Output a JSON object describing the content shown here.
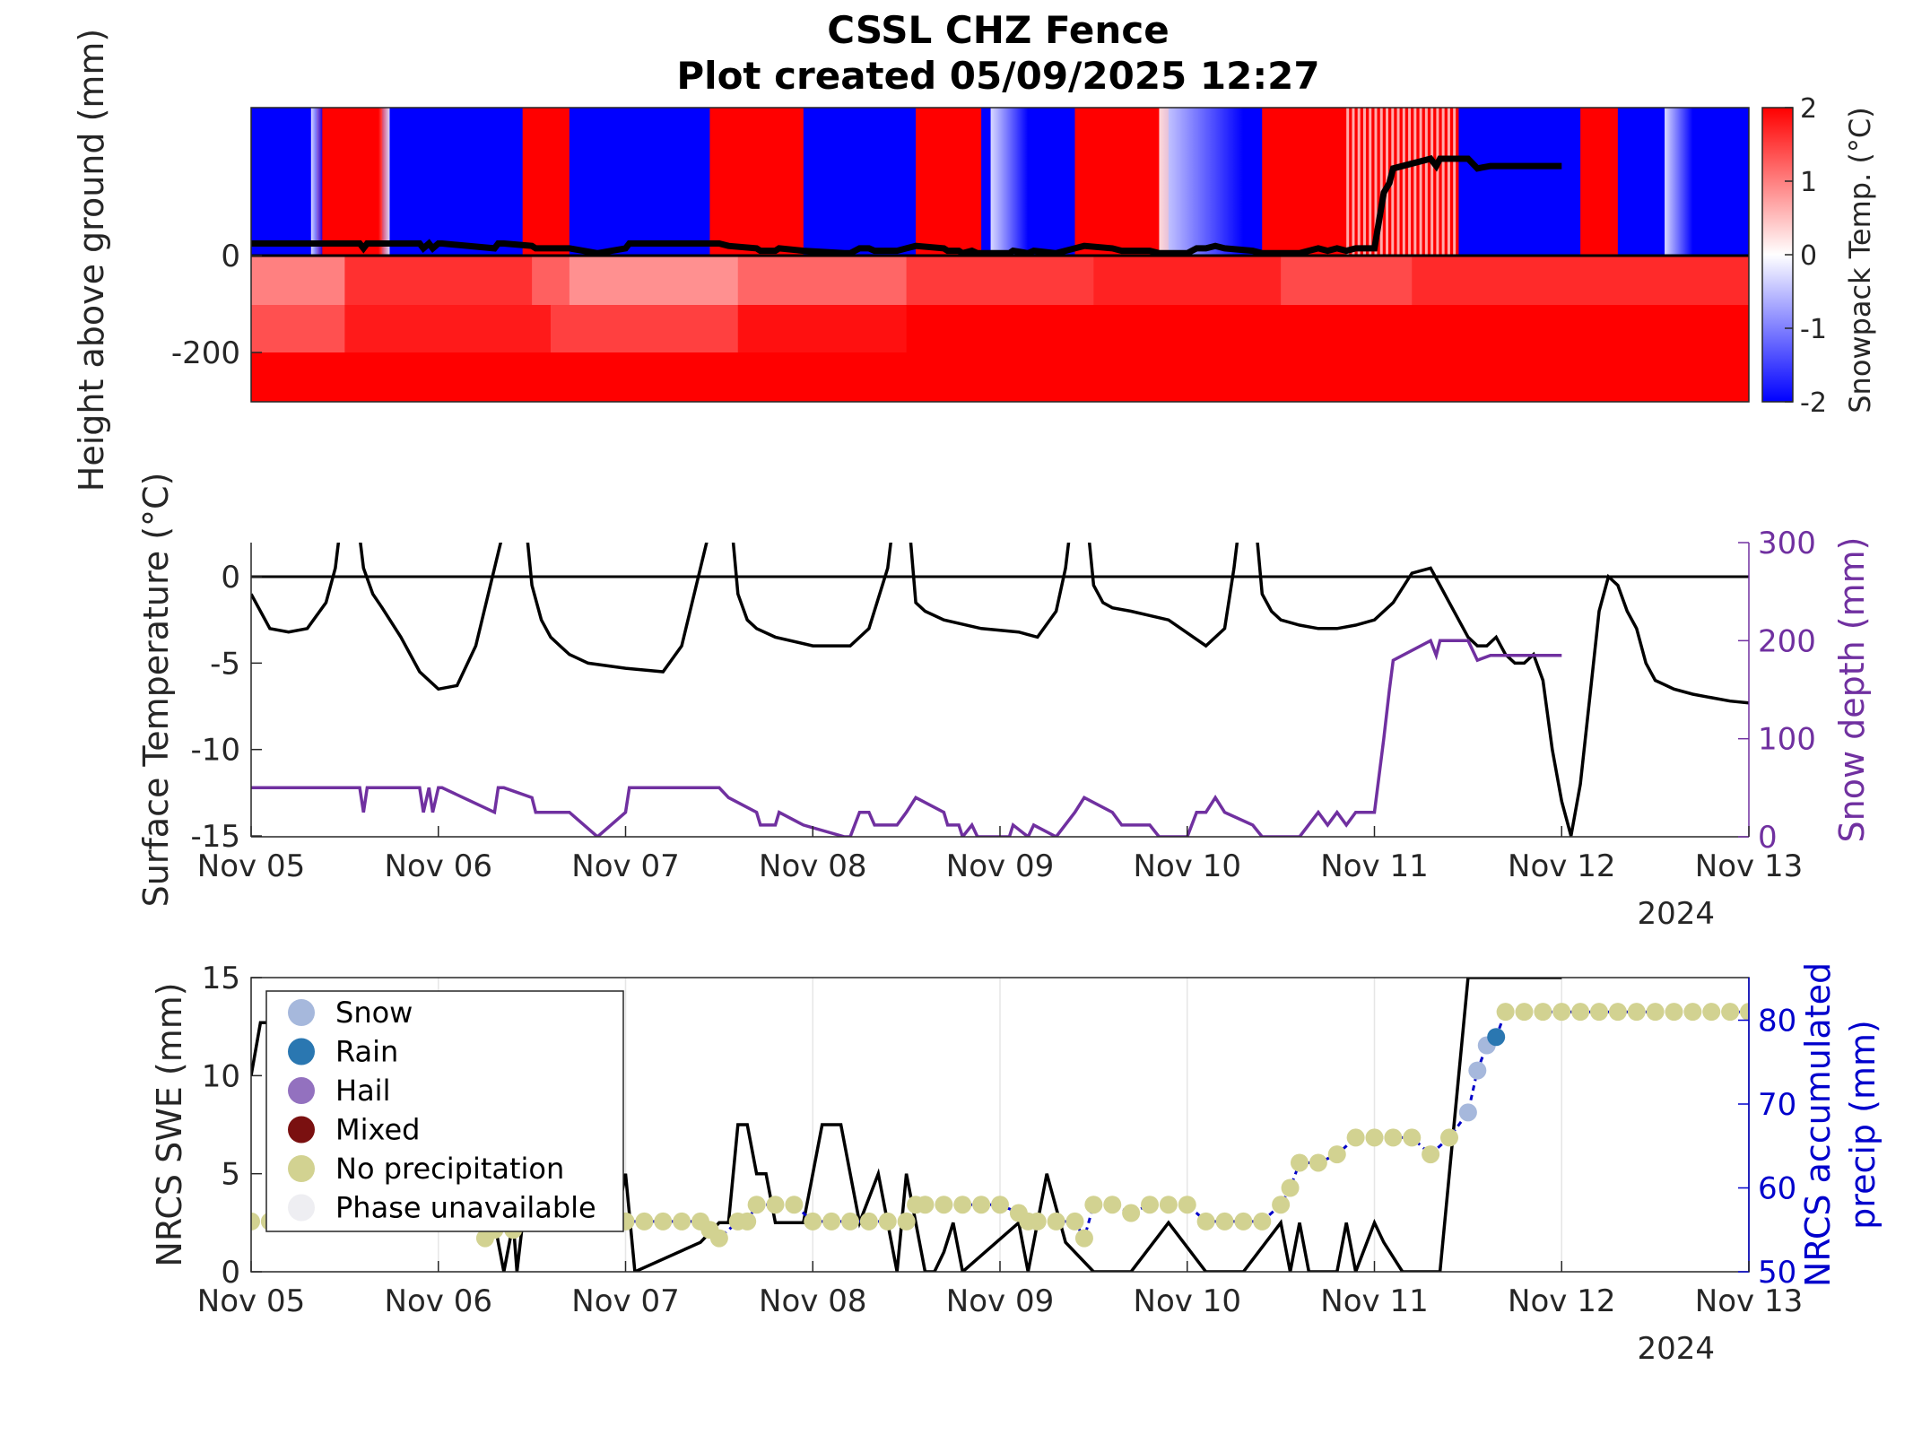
{
  "title": {
    "line1": "CSSL CHZ Fence",
    "line2": "Plot created 05/09/2025 12:27"
  },
  "colors": {
    "cold": "#0000ff",
    "warm": "#ff0000",
    "depth": "#7030a0",
    "precip": "#0000c8",
    "axis_blue": "#0000cc",
    "axis_purple": "#7030a0"
  },
  "x_ticks": [
    "Nov 05",
    "Nov 06",
    "Nov 07",
    "Nov 08",
    "Nov 09",
    "Nov 10",
    "Nov 11",
    "Nov 12",
    "Nov 13"
  ],
  "year": "2024",
  "chart_data": [
    {
      "type": "heatmap",
      "ylabel": "Height above ground (mm)",
      "y_ticks": [
        "0",
        "-200"
      ],
      "colorbar": {
        "label": "Snowpack Temp. (°C)",
        "ticks": [
          "2",
          "1",
          "0",
          "-1",
          "-2"
        ],
        "range": [
          -2,
          2
        ]
      },
      "x_range_days": [
        0,
        8
      ],
      "snow_depth_mm": {
        "x_days": [
          0,
          0.58,
          0.6,
          0.62,
          0.9,
          0.92,
          0.95,
          0.97,
          1.0,
          1.02,
          1.3,
          1.32,
          1.35,
          1.5,
          1.52,
          1.7,
          1.85,
          2.0,
          2.02,
          2.5,
          2.55,
          2.7,
          2.72,
          2.8,
          2.82,
          2.95,
          3.17,
          3.2,
          3.25,
          3.3,
          3.33,
          3.45,
          3.5,
          3.55,
          3.7,
          3.72,
          3.78,
          3.8,
          3.85,
          3.88,
          4.05,
          4.07,
          4.15,
          4.18,
          4.3,
          4.4,
          4.45,
          4.6,
          4.65,
          4.8,
          4.85,
          5.0,
          5.05,
          5.1,
          5.15,
          5.2,
          5.35,
          5.4,
          5.6,
          5.7,
          5.75,
          5.8,
          5.85,
          5.9,
          6.0,
          6.05,
          6.08,
          6.1,
          6.3,
          6.33,
          6.35,
          6.5,
          6.55,
          6.62,
          6.68,
          6.72,
          6.8,
          6.85,
          7.0
        ],
        "values": [
          25,
          25,
          15,
          25,
          25,
          15,
          25,
          15,
          25,
          25,
          15,
          25,
          25,
          20,
          15,
          15,
          5,
          15,
          25,
          25,
          20,
          15,
          10,
          10,
          15,
          10,
          5,
          5,
          15,
          15,
          10,
          10,
          15,
          20,
          15,
          10,
          10,
          5,
          10,
          5,
          5,
          10,
          5,
          10,
          5,
          15,
          20,
          15,
          10,
          10,
          5,
          5,
          15,
          15,
          20,
          15,
          10,
          5,
          5,
          15,
          10,
          15,
          10,
          15,
          15,
          130,
          150,
          180,
          200,
          185,
          200,
          200,
          180,
          185,
          185,
          185,
          185,
          185,
          185
        ]
      }
    },
    {
      "type": "line",
      "ylabel": "Surface Temperature (°C)",
      "y2label": "Snow depth (mm)",
      "y_ticks": [
        "0",
        "-5",
        "-10",
        "-15"
      ],
      "y2_ticks": [
        "300",
        "200",
        "100",
        "0"
      ],
      "ylim": [
        -15,
        2
      ],
      "y2lim": [
        0,
        300
      ],
      "series": [
        {
          "x_days": [
            0,
            0.1,
            0.2,
            0.3,
            0.4,
            0.45,
            0.5,
            0.55,
            0.6,
            0.65,
            0.7,
            0.8,
            0.9,
            1.0,
            1.1,
            1.2,
            1.3,
            1.4,
            1.45,
            1.5,
            1.55,
            1.6,
            1.65,
            1.7,
            1.8,
            2.0,
            2.2,
            2.3,
            2.4,
            2.5,
            2.55,
            2.6,
            2.65,
            2.7,
            2.8,
            3.0,
            3.2,
            3.3,
            3.4,
            3.45,
            3.5,
            3.55,
            3.6,
            3.7,
            3.9,
            4.1,
            4.2,
            4.3,
            4.35,
            4.4,
            4.45,
            4.5,
            4.55,
            4.6,
            4.7,
            4.9,
            5.1,
            5.2,
            5.25,
            5.3,
            5.35,
            5.4,
            5.45,
            5.5,
            5.6,
            5.7,
            5.8,
            5.9,
            6.0,
            6.1,
            6.2,
            6.3,
            6.35,
            6.4,
            6.5,
            6.55,
            6.6,
            6.65,
            6.7,
            6.75,
            6.8,
            6.85,
            6.9,
            6.95,
            7.0,
            7.05,
            7.1,
            7.15,
            7.2,
            7.25,
            7.3,
            7.35,
            7.4,
            7.45,
            7.5,
            7.6,
            7.7,
            7.8,
            7.9,
            8.0
          ],
          "values": [
            -1,
            -3,
            -3.2,
            -3,
            -1.5,
            0.5,
            5,
            5,
            0.5,
            -1,
            -1.8,
            -3.5,
            -5.5,
            -6.5,
            -6.3,
            -4,
            0.5,
            5,
            5,
            -0.5,
            -2.5,
            -3.5,
            -4,
            -4.5,
            -5,
            -5.3,
            -5.5,
            -4,
            0.5,
            5,
            5,
            -1,
            -2.5,
            -3,
            -3.5,
            -4,
            -4,
            -3,
            0.5,
            5,
            5,
            -1.5,
            -2,
            -2.5,
            -3,
            -3.2,
            -3.5,
            -2,
            0.5,
            5,
            5,
            -0.5,
            -1.5,
            -1.8,
            -2,
            -2.5,
            -4,
            -3,
            0.5,
            5,
            5,
            -1,
            -2,
            -2.5,
            -2.8,
            -3,
            -3,
            -2.8,
            -2.5,
            -1.5,
            0.2,
            0.5,
            -0.5,
            -1.5,
            -3.5,
            -4,
            -4,
            -3.5,
            -4.5,
            -5,
            -5,
            -4.5,
            -6,
            -10,
            -13,
            -15,
            -12,
            -7,
            -2,
            0,
            -0.5,
            -2,
            -3,
            -5,
            -6,
            -6.5,
            -6.8,
            -7,
            -7.2,
            -7.3
          ]
        },
        {
          "name": "Snow depth",
          "axis": "right",
          "x_days": [
            0,
            0.58,
            0.6,
            0.62,
            0.9,
            0.92,
            0.95,
            0.97,
            1.0,
            1.02,
            1.3,
            1.32,
            1.35,
            1.5,
            1.52,
            1.7,
            1.85,
            2.0,
            2.02,
            2.5,
            2.55,
            2.7,
            2.72,
            2.8,
            2.82,
            2.95,
            3.17,
            3.2,
            3.25,
            3.3,
            3.33,
            3.45,
            3.5,
            3.55,
            3.7,
            3.72,
            3.78,
            3.8,
            3.85,
            3.88,
            4.05,
            4.07,
            4.15,
            4.18,
            4.3,
            4.4,
            4.45,
            4.6,
            4.65,
            4.8,
            4.85,
            5.0,
            5.05,
            5.1,
            5.15,
            5.2,
            5.35,
            5.4,
            5.6,
            5.7,
            5.75,
            5.8,
            5.85,
            5.9,
            6.0,
            6.05,
            6.08,
            6.1,
            6.3,
            6.33,
            6.35,
            6.5,
            6.55,
            6.62,
            6.68,
            6.72,
            6.8,
            6.85,
            7.0
          ],
          "values": [
            50,
            50,
            25,
            50,
            50,
            25,
            50,
            25,
            50,
            50,
            25,
            50,
            50,
            40,
            25,
            25,
            0,
            25,
            50,
            50,
            40,
            25,
            12,
            12,
            25,
            12,
            0,
            0,
            25,
            25,
            12,
            12,
            25,
            40,
            25,
            12,
            12,
            0,
            12,
            0,
            0,
            12,
            0,
            12,
            0,
            25,
            40,
            25,
            12,
            12,
            0,
            0,
            25,
            25,
            40,
            25,
            12,
            0,
            0,
            25,
            12,
            25,
            12,
            25,
            25,
            100,
            150,
            180,
            200,
            185,
            200,
            200,
            180,
            185,
            185,
            185,
            185,
            185,
            185
          ]
        }
      ]
    },
    {
      "type": "scatter",
      "ylabel": "NRCS SWE (mm)",
      "y2label_line1": "NRCS accumulated",
      "y2label_line2": "precip (mm)",
      "y_ticks": [
        "15",
        "10",
        "5",
        "0"
      ],
      "y2_ticks": [
        "80",
        "70",
        "60",
        "50"
      ],
      "ylim": [
        0,
        15
      ],
      "y2lim": [
        50,
        85
      ],
      "legend": [
        {
          "label": "Snow",
          "color": "#a6b8dc"
        },
        {
          "label": "Rain",
          "color": "#2a77b1"
        },
        {
          "label": "Hail",
          "color": "#9371bf"
        },
        {
          "label": "Mixed",
          "color": "#7a1010"
        },
        {
          "label": "No precipitation",
          "color": "#d2d291"
        },
        {
          "label": "Phase unavailable",
          "color": "#eeeef2"
        }
      ],
      "swe_series": {
        "x_days": [
          0,
          0.05,
          0.1,
          1.25,
          1.3,
          1.35,
          1.4,
          1.42,
          1.45,
          1.47,
          1.8,
          1.95,
          2.0,
          2.05,
          2.4,
          2.5,
          2.55,
          2.6,
          2.62,
          2.65,
          2.7,
          2.75,
          2.8,
          2.85,
          2.95,
          3.0,
          3.05,
          3.15,
          3.2,
          3.25,
          3.35,
          3.45,
          3.5,
          3.55,
          3.6,
          3.65,
          3.7,
          3.75,
          3.8,
          4.1,
          4.15,
          4.2,
          4.25,
          4.35,
          4.5,
          4.7,
          4.9,
          5.1,
          5.3,
          5.5,
          5.55,
          5.6,
          5.65,
          5.8,
          5.85,
          5.9,
          6.0,
          6.05,
          6.15,
          6.3,
          6.35,
          6.5,
          6.8,
          6.9,
          7.0
        ],
        "values": [
          10,
          12.7,
          12.7,
          2.5,
          2.5,
          0,
          2.5,
          0,
          2.5,
          2.5,
          2.5,
          2.5,
          5,
          0,
          1.5,
          2.5,
          2.5,
          7.5,
          7.5,
          7.5,
          5,
          5,
          2.5,
          2.5,
          2.5,
          5,
          7.5,
          7.5,
          5,
          2.5,
          5,
          0,
          5,
          2.5,
          0,
          0,
          1,
          2.5,
          0,
          2.5,
          0,
          2.5,
          5,
          1.5,
          0,
          0,
          2.5,
          0,
          0,
          2.5,
          0,
          2.5,
          0,
          0,
          2.5,
          0,
          2.5,
          1.5,
          0,
          0,
          0,
          15,
          15,
          15,
          15
        ]
      },
      "precip_points": {
        "x_days": [
          0,
          0.1,
          0.2,
          0.3,
          0.4,
          0.5,
          0.6,
          0.7,
          0.8,
          0.9,
          1.0,
          1.1,
          1.2,
          1.25,
          1.3,
          1.4,
          1.5,
          1.6,
          1.7,
          1.8,
          1.9,
          2.0,
          2.1,
          2.2,
          2.3,
          2.4,
          2.45,
          2.5,
          2.6,
          2.65,
          2.7,
          2.8,
          2.9,
          3.0,
          3.1,
          3.2,
          3.3,
          3.4,
          3.5,
          3.55,
          3.6,
          3.7,
          3.8,
          3.9,
          4.0,
          4.1,
          4.15,
          4.2,
          4.3,
          4.4,
          4.45,
          4.5,
          4.6,
          4.7,
          4.8,
          4.9,
          5.0,
          5.1,
          5.2,
          5.3,
          5.4,
          5.5,
          5.55,
          5.6,
          5.7,
          5.8,
          5.9,
          6.0,
          6.1,
          6.2,
          6.3,
          6.4,
          6.5,
          6.55,
          6.6,
          6.65,
          6.7,
          6.8,
          6.9,
          7.0,
          7.1,
          7.2,
          7.3,
          7.4,
          7.5,
          7.6,
          7.7,
          7.8,
          7.9,
          8.0
        ],
        "values": [
          56,
          56,
          56,
          56,
          56,
          56,
          56,
          56,
          56,
          56,
          56,
          56,
          56,
          54,
          55,
          55,
          56,
          56,
          56,
          56,
          56,
          56,
          56,
          56,
          56,
          56,
          55,
          54,
          56,
          56,
          58,
          58,
          58,
          56,
          56,
          56,
          56,
          56,
          56,
          58,
          58,
          58,
          58,
          58,
          58,
          57,
          56,
          56,
          56,
          56,
          54,
          58,
          58,
          57,
          58,
          58,
          58,
          56,
          56,
          56,
          56,
          58,
          60,
          63,
          63,
          64,
          66,
          66,
          66,
          66,
          64,
          66,
          69,
          74,
          77,
          78,
          81,
          81,
          81,
          81,
          81,
          81,
          81,
          81,
          81,
          81,
          81,
          81,
          81,
          81
        ],
        "phases": [
          "none",
          "none",
          "none",
          "none",
          "none",
          "none",
          "none",
          "none",
          "none",
          "none",
          "none",
          "none",
          "none",
          "none",
          "none",
          "none",
          "none",
          "none",
          "none",
          "none",
          "none",
          "none",
          "none",
          "none",
          "none",
          "none",
          "none",
          "none",
          "none",
          "none",
          "none",
          "none",
          "none",
          "none",
          "none",
          "none",
          "none",
          "none",
          "none",
          "none",
          "none",
          "none",
          "none",
          "none",
          "none",
          "none",
          "none",
          "none",
          "none",
          "none",
          "none",
          "none",
          "none",
          "none",
          "none",
          "none",
          "none",
          "none",
          "none",
          "none",
          "none",
          "none",
          "none",
          "none",
          "none",
          "none",
          "none",
          "none",
          "none",
          "none",
          "none",
          "none",
          "snow",
          "snow",
          "snow",
          "rain",
          "none",
          "none",
          "none",
          "none",
          "none",
          "none",
          "none",
          "none",
          "none",
          "none",
          "none",
          "none",
          "none",
          "none"
        ]
      }
    }
  ]
}
